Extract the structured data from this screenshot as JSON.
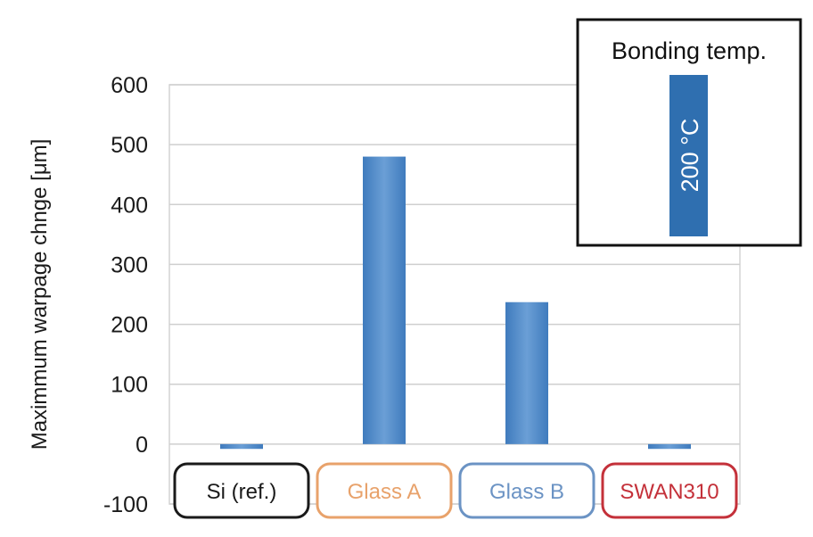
{
  "chart_data": {
    "type": "bar",
    "ylabel": "Maximmum warpage chnge [μm]",
    "ylim": [
      -100,
      600
    ],
    "yticks": [
      600,
      500,
      400,
      300,
      200,
      100,
      0,
      -100
    ],
    "grid": true,
    "categories": [
      "Si (ref.)",
      "Glass A",
      "Glass B",
      "SWAN310"
    ],
    "category_colors": [
      "#1a1a1a",
      "#e8a26b",
      "#6b93c4",
      "#c4313a"
    ],
    "series": [
      {
        "name": "200 °C",
        "color": "#4a86c5",
        "values": [
          -8,
          480,
          237,
          -8
        ]
      }
    ],
    "legend": {
      "title": "Bonding temp.",
      "placement": "top-right"
    }
  }
}
